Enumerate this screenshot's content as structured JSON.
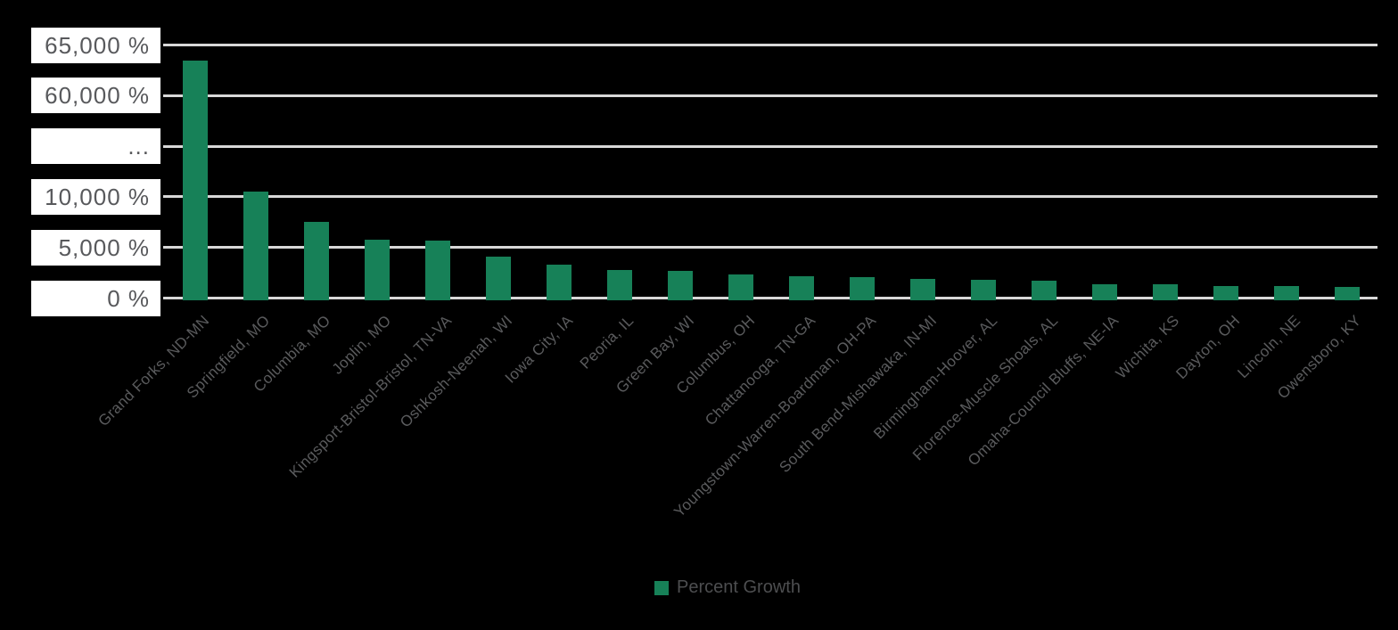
{
  "chart_data": {
    "type": "bar",
    "title": "",
    "xlabel": "",
    "ylabel": "",
    "categories": [
      "Grand Forks, ND-MN",
      "Springfield, MO",
      "Columbia, MO",
      "Joplin, MO",
      "Kingsport-Bristol-Bristol, TN-VA",
      "Oshkosh-Neenah, WI",
      "Iowa City, IA",
      "Peoria, IL",
      "Green Bay, WI",
      "Columbus, OH",
      "Chattanooga, TN-GA",
      "Youngstown-Warren-Boardman, OH-PA",
      "South Bend-Mishawaka, IN-MI",
      "Birmingham-Hoover, AL",
      "Florence-Muscle Shoals, AL",
      "Omaha-Council Bluffs, NE-IA",
      "Wichita, KS",
      "Dayton, OH",
      "Lincoln, NE",
      "Owensboro, KY"
    ],
    "series": [
      {
        "name": "Percent Growth",
        "values": [
          63500,
          10500,
          7500,
          5800,
          5650,
          4100,
          3300,
          2800,
          2700,
          2350,
          2200,
          2100,
          1900,
          1800,
          1750,
          1400,
          1350,
          1200,
          1150,
          1100
        ]
      }
    ],
    "y_ticks": [
      "0 %",
      "5,000 %",
      "10,000 %",
      "...",
      "60,000 %",
      "65,000 %"
    ],
    "axis_break": {
      "tick_label": "...",
      "between_values": [
        10000,
        60000
      ]
    },
    "legend": {
      "position": "bottom",
      "items": [
        "Percent Growth"
      ]
    },
    "grid": true,
    "colors": {
      "bar": "#178158",
      "gridline": "#D8D8D8",
      "tick_text": "#58595C",
      "x_label_text": "#5A5B5D",
      "legend_text": "#4D4E50",
      "tick_box_bg": "#FFFFFF",
      "background": "#000000"
    }
  }
}
